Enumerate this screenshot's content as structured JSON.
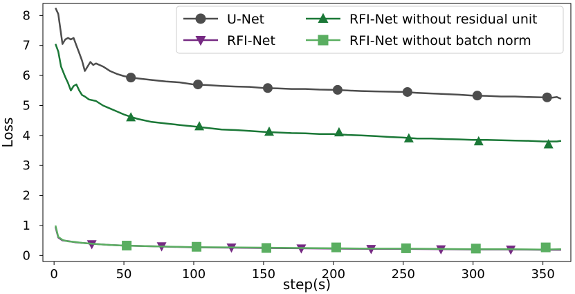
{
  "chart_data": {
    "type": "line",
    "title": "",
    "xlabel": "step(s)",
    "ylabel": "Loss",
    "xlim": [
      -8,
      370
    ],
    "ylim": [
      -0.2,
      8.4
    ],
    "xticks": [
      0,
      50,
      100,
      150,
      200,
      250,
      300,
      350
    ],
    "yticks": [
      0,
      1,
      2,
      3,
      4,
      5,
      6,
      7,
      8
    ],
    "grid": false,
    "legend": "top-right, two columns",
    "series": [
      {
        "name": "U-Net",
        "color": "#4d4d4d",
        "marker": "circle",
        "x": [
          1,
          3,
          6,
          8,
          10,
          12,
          14,
          16,
          18,
          20,
          22,
          24,
          26,
          28,
          30,
          35,
          40,
          45,
          50,
          55,
          60,
          70,
          80,
          90,
          100,
          110,
          120,
          130,
          140,
          150,
          160,
          170,
          180,
          190,
          200,
          210,
          220,
          230,
          240,
          250,
          260,
          270,
          280,
          290,
          300,
          310,
          320,
          330,
          340,
          350,
          355,
          360,
          363
        ],
        "y": [
          8.25,
          8.05,
          7.05,
          7.2,
          7.25,
          7.2,
          7.25,
          7.0,
          6.75,
          6.5,
          6.15,
          6.3,
          6.45,
          6.35,
          6.4,
          6.3,
          6.15,
          6.05,
          5.98,
          5.93,
          5.9,
          5.85,
          5.8,
          5.77,
          5.7,
          5.68,
          5.65,
          5.63,
          5.62,
          5.58,
          5.57,
          5.55,
          5.55,
          5.53,
          5.52,
          5.5,
          5.48,
          5.47,
          5.46,
          5.45,
          5.42,
          5.4,
          5.38,
          5.36,
          5.33,
          5.32,
          5.3,
          5.3,
          5.28,
          5.27,
          5.25,
          5.28,
          5.22
        ],
        "marker_x": [
          55,
          103,
          153,
          203,
          253,
          303,
          353
        ],
        "marker_y": [
          5.93,
          5.7,
          5.58,
          5.52,
          5.45,
          5.33,
          5.27
        ]
      },
      {
        "name": "RFI-Net",
        "color": "#762a83",
        "marker": "triangle-down",
        "x": [
          1,
          3,
          6,
          10,
          15,
          20,
          30,
          40,
          50,
          75,
          100,
          125,
          150,
          175,
          200,
          225,
          250,
          275,
          300,
          325,
          350,
          363
        ],
        "y": [
          0.95,
          0.6,
          0.5,
          0.48,
          0.44,
          0.42,
          0.38,
          0.35,
          0.33,
          0.3,
          0.27,
          0.26,
          0.25,
          0.24,
          0.23,
          0.22,
          0.22,
          0.21,
          0.2,
          0.2,
          0.19,
          0.19
        ],
        "marker_x": [
          27,
          77,
          127,
          177,
          227,
          277,
          327
        ],
        "marker_y": [
          0.38,
          0.31,
          0.27,
          0.24,
          0.22,
          0.21,
          0.2
        ]
      },
      {
        "name": "RFI-Net without residual unit",
        "color": "#1b7837",
        "marker": "triangle-up",
        "x": [
          1,
          3,
          5,
          8,
          10,
          12,
          14,
          16,
          18,
          20,
          22,
          25,
          30,
          35,
          40,
          45,
          50,
          55,
          60,
          70,
          80,
          90,
          100,
          110,
          120,
          130,
          140,
          150,
          160,
          170,
          180,
          190,
          200,
          210,
          220,
          230,
          240,
          250,
          260,
          270,
          280,
          290,
          300,
          310,
          320,
          330,
          340,
          350,
          360,
          363
        ],
        "y": [
          7.05,
          6.8,
          6.3,
          5.95,
          5.75,
          5.5,
          5.65,
          5.7,
          5.5,
          5.35,
          5.3,
          5.2,
          5.15,
          5.0,
          4.9,
          4.8,
          4.7,
          4.62,
          4.55,
          4.45,
          4.4,
          4.35,
          4.3,
          4.25,
          4.2,
          4.18,
          4.15,
          4.12,
          4.1,
          4.08,
          4.07,
          4.05,
          4.05,
          4.02,
          4.0,
          3.98,
          3.95,
          3.93,
          3.9,
          3.9,
          3.88,
          3.87,
          3.85,
          3.85,
          3.84,
          3.83,
          3.82,
          3.8,
          3.8,
          3.82
        ],
        "marker_x": [
          55,
          104,
          154,
          204,
          254,
          304,
          354
        ],
        "marker_y": [
          4.6,
          4.3,
          4.12,
          4.1,
          3.9,
          3.8,
          3.7
        ]
      },
      {
        "name": "RFI-Net without batch norm",
        "color": "#5aae61",
        "marker": "square",
        "x": [
          1,
          3,
          6,
          10,
          15,
          20,
          30,
          40,
          50,
          75,
          100,
          125,
          150,
          175,
          200,
          225,
          250,
          275,
          300,
          325,
          350,
          363
        ],
        "y": [
          1.0,
          0.62,
          0.52,
          0.47,
          0.45,
          0.42,
          0.38,
          0.35,
          0.33,
          0.3,
          0.28,
          0.27,
          0.26,
          0.25,
          0.24,
          0.23,
          0.23,
          0.22,
          0.21,
          0.21,
          0.2,
          0.21
        ],
        "marker_x": [
          52,
          102,
          152,
          202,
          252,
          302,
          352
        ],
        "marker_y": [
          0.33,
          0.29,
          0.25,
          0.27,
          0.24,
          0.23,
          0.27
        ]
      }
    ]
  }
}
